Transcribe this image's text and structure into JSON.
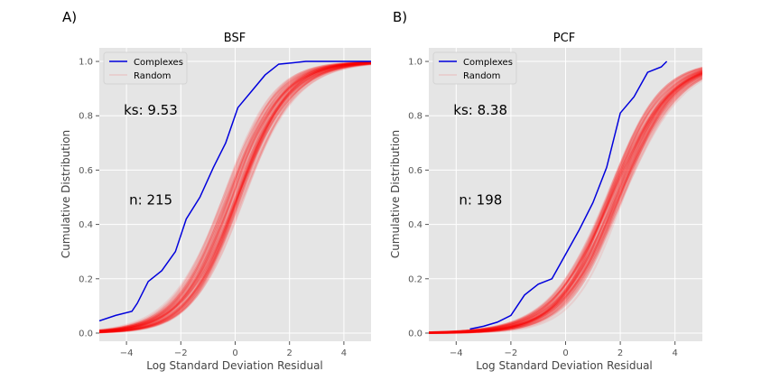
{
  "chart_data": [
    {
      "type": "line",
      "panel_label": "A)",
      "title": "BSF",
      "xlabel": "Log Standard Deviation Residual",
      "ylabel": "Cumulative Distribution",
      "xlim": [
        -5,
        5
      ],
      "ylim": [
        -0.03,
        1.05
      ],
      "xticks": [
        -4,
        -2,
        0,
        2,
        4
      ],
      "xtick_labels": [
        "−4",
        "−2",
        "0",
        "2",
        "4"
      ],
      "yticks": [
        0.0,
        0.2,
        0.4,
        0.6,
        0.8,
        1.0
      ],
      "ytick_labels": [
        "0.0",
        "0.2",
        "0.4",
        "0.6",
        "0.8",
        "1.0"
      ],
      "grid": true,
      "legend_position": "top-left",
      "annotations": [
        {
          "text": "ks: 9.53",
          "x": -4.1,
          "y": 0.82
        },
        {
          "text": "n: 215",
          "x": -3.9,
          "y": 0.49
        }
      ],
      "series": [
        {
          "name": "Complexes",
          "color": "#0000dd",
          "x": [
            -5.0,
            -4.4,
            -3.8,
            -3.6,
            -3.2,
            -2.7,
            -2.2,
            -1.8,
            -1.3,
            -0.8,
            -0.35,
            0.1,
            0.6,
            1.1,
            1.6,
            2.1,
            2.6,
            3.2,
            3.8,
            5.0
          ],
          "y": [
            0.045,
            0.065,
            0.08,
            0.11,
            0.19,
            0.23,
            0.3,
            0.42,
            0.5,
            0.61,
            0.7,
            0.83,
            0.89,
            0.95,
            0.99,
            0.995,
            1.0,
            1.0,
            1.0,
            1.0
          ]
        },
        {
          "name": "Random",
          "color": "#ff0000",
          "band": {
            "center": -0.05,
            "scale": 0.95,
            "spread": 0.18
          }
        }
      ]
    },
    {
      "type": "line",
      "panel_label": "B)",
      "title": "PCF",
      "xlabel": "Log Standard Deviation Residual",
      "ylabel": "Cumulative Distribution",
      "xlim": [
        -5,
        5
      ],
      "ylim": [
        -0.03,
        1.05
      ],
      "xticks": [
        -4,
        -2,
        0,
        2,
        4
      ],
      "xtick_labels": [
        "−4",
        "−2",
        "0",
        "2",
        "4"
      ],
      "yticks": [
        0.0,
        0.2,
        0.4,
        0.6,
        0.8,
        1.0
      ],
      "ytick_labels": [
        "0.0",
        "0.2",
        "0.4",
        "0.6",
        "0.8",
        "1.0"
      ],
      "grid": true,
      "legend_position": "top-left",
      "annotations": [
        {
          "text": "ks: 8.38",
          "x": -4.1,
          "y": 0.82
        },
        {
          "text": "n: 198",
          "x": -3.9,
          "y": 0.49
        }
      ],
      "series": [
        {
          "name": "Complexes",
          "color": "#0000dd",
          "x": [
            -3.5,
            -3.0,
            -2.5,
            -2.0,
            -1.5,
            -1.0,
            -0.5,
            0.0,
            0.5,
            1.0,
            1.5,
            2.0,
            2.5,
            3.0,
            3.5,
            3.7
          ],
          "y": [
            0.015,
            0.025,
            0.04,
            0.065,
            0.14,
            0.18,
            0.2,
            0.29,
            0.38,
            0.48,
            0.61,
            0.81,
            0.87,
            0.96,
            0.98,
            1.0
          ]
        },
        {
          "name": "Random",
          "color": "#ff0000",
          "band": {
            "center": 1.8,
            "scale": 1.02,
            "spread": 0.15
          }
        }
      ]
    }
  ]
}
